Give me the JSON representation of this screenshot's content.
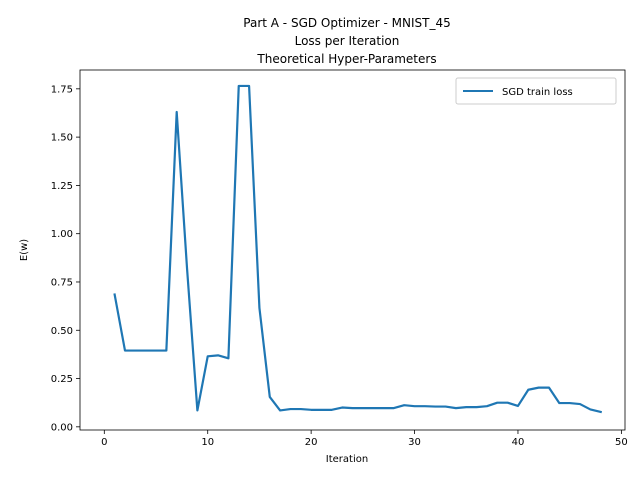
{
  "chart_data": {
    "type": "line",
    "title_lines": [
      "Part A -  SGD Optimizer - MNIST_45",
      "Loss per Iteration",
      "Theoretical Hyper-Parameters"
    ],
    "xlabel": "Iteration",
    "ylabel": "E(w)",
    "xlim": [
      -2.35,
      50.35
    ],
    "ylim": [
      -0.0164,
      1.8475
    ],
    "xticks": [
      0,
      10,
      20,
      30,
      40,
      50
    ],
    "yticks": [
      0.0,
      0.25,
      0.5,
      0.75,
      1.0,
      1.25,
      1.5,
      1.75
    ],
    "xtick_labels": [
      "0",
      "10",
      "20",
      "30",
      "40",
      "50"
    ],
    "ytick_labels": [
      "0.00",
      "0.25",
      "0.50",
      "0.75",
      "1.00",
      "1.25",
      "1.50",
      "1.75"
    ],
    "grid": false,
    "legend": {
      "position": "top-right"
    },
    "series": [
      {
        "name": " SGD train loss",
        "color": "#1f77b4",
        "x": [
          1,
          2,
          3,
          4,
          5,
          6,
          7,
          8,
          9,
          10,
          11,
          12,
          13,
          14,
          15,
          16,
          17,
          18,
          19,
          20,
          21,
          22,
          23,
          24,
          25,
          26,
          27,
          28,
          29,
          30,
          31,
          32,
          33,
          34,
          35,
          36,
          37,
          38,
          39,
          40,
          41,
          42,
          43,
          44,
          45,
          46,
          47,
          48
        ],
        "y": [
          0.685,
          0.395,
          0.395,
          0.395,
          0.395,
          0.395,
          1.63,
          0.82,
          0.085,
          0.365,
          0.37,
          0.355,
          1.765,
          1.765,
          0.615,
          0.155,
          0.085,
          0.092,
          0.092,
          0.088,
          0.088,
          0.088,
          0.1,
          0.097,
          0.097,
          0.097,
          0.097,
          0.097,
          0.112,
          0.107,
          0.107,
          0.105,
          0.105,
          0.097,
          0.102,
          0.102,
          0.107,
          0.125,
          0.125,
          0.108,
          0.192,
          0.203,
          0.203,
          0.123,
          0.123,
          0.118,
          0.09,
          0.077
        ]
      }
    ]
  }
}
